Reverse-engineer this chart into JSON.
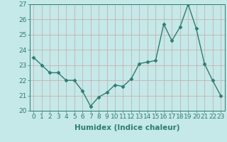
{
  "x": [
    0,
    1,
    2,
    3,
    4,
    5,
    6,
    7,
    8,
    9,
    10,
    11,
    12,
    13,
    14,
    15,
    16,
    17,
    18,
    19,
    20,
    21,
    22,
    23
  ],
  "y": [
    23.5,
    23.0,
    22.5,
    22.5,
    22.0,
    22.0,
    21.3,
    20.3,
    20.9,
    21.2,
    21.7,
    21.6,
    22.1,
    23.1,
    23.2,
    23.3,
    25.7,
    24.6,
    25.5,
    27.0,
    25.4,
    23.1,
    22.0,
    21.0
  ],
  "line_color": "#2e7d6e",
  "marker": "D",
  "markersize": 2.5,
  "linewidth": 1.0,
  "bg_color": "#c5e8e8",
  "grid_color": "#c8a8a8",
  "xlabel": "Humidex (Indice chaleur)",
  "ylabel": "",
  "ylim": [
    20,
    27
  ],
  "xlim": [
    -0.5,
    23.5
  ],
  "yticks": [
    20,
    21,
    22,
    23,
    24,
    25,
    26,
    27
  ],
  "xticks": [
    0,
    1,
    2,
    3,
    4,
    5,
    6,
    7,
    8,
    9,
    10,
    11,
    12,
    13,
    14,
    15,
    16,
    17,
    18,
    19,
    20,
    21,
    22,
    23
  ],
  "tick_color": "#2e7d6e",
  "label_color": "#2e7d6e",
  "xlabel_fontsize": 7.5,
  "tick_fontsize": 6.5
}
